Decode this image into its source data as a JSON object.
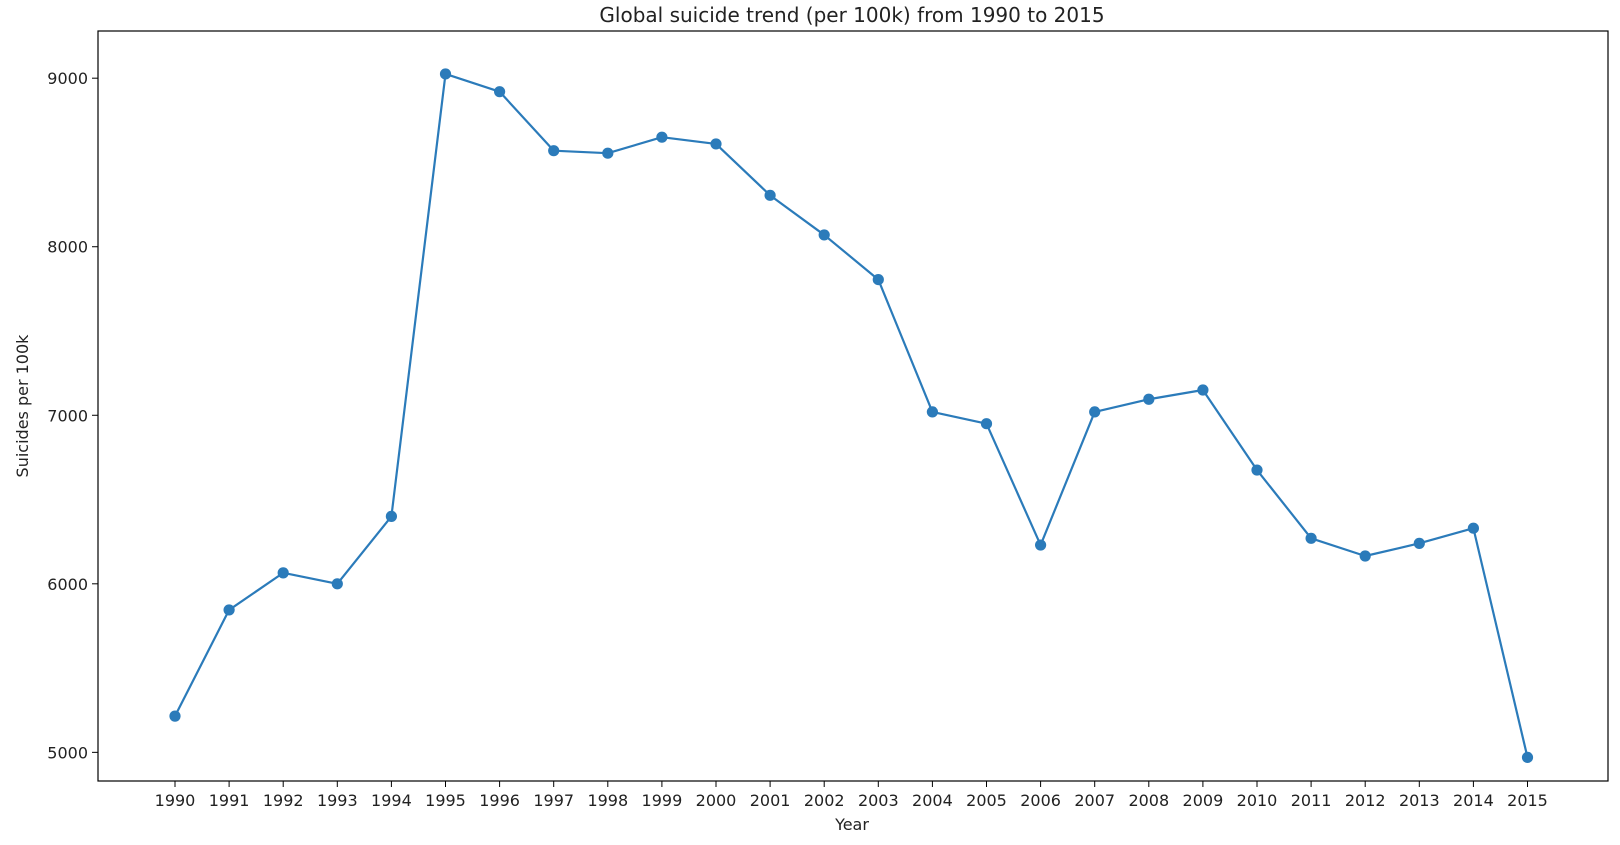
{
  "chart_data": {
    "type": "line",
    "title": "Global suicide trend (per 100k) from 1990 to 2015",
    "xlabel": "Year",
    "ylabel": "Suicides per 100k",
    "categories": [
      "1990",
      "1991",
      "1992",
      "1993",
      "1994",
      "1995",
      "1996",
      "1997",
      "1998",
      "1999",
      "2000",
      "2001",
      "2002",
      "2003",
      "2004",
      "2005",
      "2006",
      "2007",
      "2008",
      "2009",
      "2010",
      "2011",
      "2012",
      "2013",
      "2014",
      "2015"
    ],
    "series": [
      {
        "values": [
          5215,
          5845,
          6065,
          6000,
          6400,
          9025,
          8920,
          8570,
          8555,
          8650,
          8610,
          8305,
          8070,
          7805,
          7020,
          6950,
          6230,
          7020,
          7095,
          7150,
          6675,
          6270,
          6165,
          6240,
          6330,
          4970
        ]
      }
    ],
    "ylim": [
      4830,
      9280
    ],
    "yticks": [
      5000,
      6000,
      7000,
      8000,
      9000
    ],
    "grid": false,
    "legend": "none",
    "colors": {
      "line": "#2b7bba",
      "marker": "#2b7bba",
      "axis": "#000000",
      "text": "#222222"
    }
  }
}
